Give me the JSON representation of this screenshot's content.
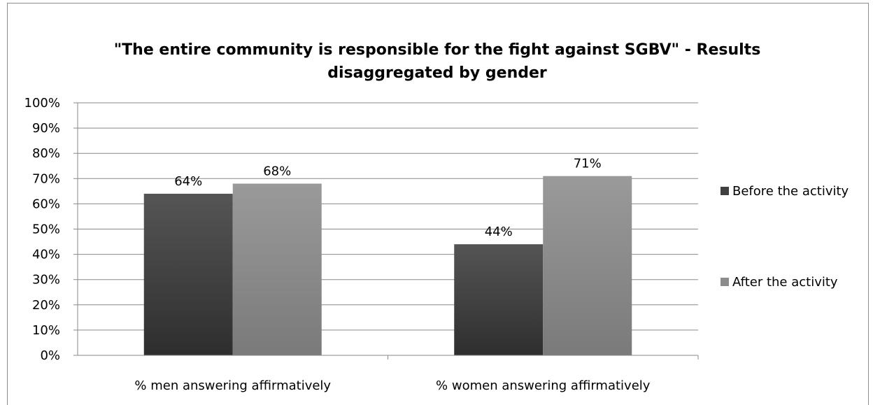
{
  "chart_data": {
    "type": "bar",
    "title_lines": [
      "\"The entire community is responsible for the fight against SGBV\" - Results",
      "disaggregated by gender"
    ],
    "categories": [
      "% men answering affirmatively",
      "% women answering affirmatively"
    ],
    "series": [
      {
        "name": "Before the activity",
        "values": [
          64,
          44
        ],
        "labels": [
          "64%",
          "44%"
        ],
        "color": "#404040"
      },
      {
        "name": "After the activity",
        "values": [
          68,
          71
        ],
        "labels": [
          "68%",
          "71%"
        ],
        "color": "#8c8c8c"
      }
    ],
    "ylim": [
      0,
      100
    ],
    "yticks": [
      "0%",
      "10%",
      "20%",
      "30%",
      "40%",
      "50%",
      "60%",
      "70%",
      "80%",
      "90%",
      "100%"
    ],
    "grid": true,
    "legend_position": "right"
  }
}
